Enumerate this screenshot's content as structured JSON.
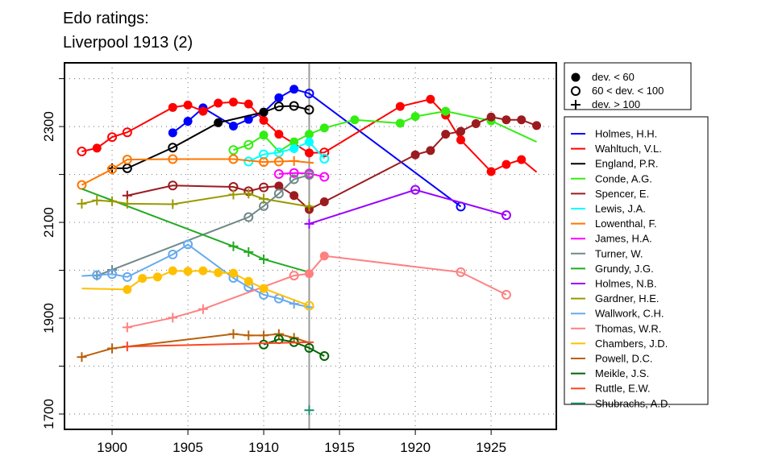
{
  "chart_data": {
    "type": "line",
    "title": [
      "Edo ratings:",
      "Liverpool 1913 (2)"
    ],
    "xlabel": "",
    "ylabel": "",
    "xlim": [
      1896.86,
      1929.3
    ],
    "ylim": [
      1668,
      2433
    ],
    "x_ticks": [
      1900,
      1905,
      1910,
      1915,
      1920,
      1925
    ],
    "y_ticks": [
      1700,
      1800,
      1900,
      2000,
      2100,
      2200,
      2300,
      2400
    ],
    "y_tick_labels": [
      1700,
      1900,
      2100,
      2300
    ],
    "grid": true,
    "reference_line_year": 1913,
    "marker_legend": [
      {
        "marker": "filled",
        "label": "dev. < 60"
      },
      {
        "marker": "open",
        "label": "60 < dev. < 100"
      },
      {
        "marker": "plus",
        "label": "dev. > 100"
      }
    ],
    "legend_placement": "right",
    "series": [
      {
        "name": "Holmes, H.H.",
        "color": "#0000ff",
        "points": [
          [
            1904,
            2287,
            "f"
          ],
          [
            1905,
            2311,
            "f"
          ],
          [
            1906,
            2339,
            "f"
          ],
          [
            1908,
            2301,
            "f"
          ],
          [
            1909,
            2315,
            "f"
          ],
          [
            1910,
            2330,
            "f"
          ],
          [
            1911,
            2360,
            "f"
          ],
          [
            1912,
            2378,
            "f"
          ],
          [
            1913,
            2369,
            "o"
          ],
          [
            1923,
            2133,
            "o"
          ]
        ]
      },
      {
        "name": "Wahltuch, V.L.",
        "color": "#ff0000",
        "points": [
          [
            1898,
            2248,
            "o"
          ],
          [
            1899,
            2255,
            "f"
          ],
          [
            1900,
            2278,
            "o"
          ],
          [
            1901,
            2288,
            "o"
          ],
          [
            1904,
            2340,
            "f"
          ],
          [
            1905,
            2345,
            "f"
          ],
          [
            1906,
            2332,
            "f"
          ],
          [
            1907,
            2349,
            "f"
          ],
          [
            1908,
            2351,
            "f"
          ],
          [
            1909,
            2347,
            "f"
          ],
          [
            1910,
            2313,
            "f"
          ],
          [
            1911,
            2284,
            "f"
          ],
          [
            1913,
            2245,
            "f"
          ],
          [
            1914,
            2246,
            "o"
          ],
          [
            1919,
            2342,
            "f"
          ],
          [
            1921,
            2357,
            "f"
          ],
          [
            1922,
            2324,
            "f"
          ],
          [
            1923,
            2272,
            "f"
          ],
          [
            1925,
            2206,
            "f"
          ],
          [
            1926,
            2221,
            "f"
          ],
          [
            1927,
            2231,
            "f"
          ],
          [
            1928,
            2205,
            "n"
          ]
        ]
      },
      {
        "name": "England, P.R.",
        "color": "#000000",
        "points": [
          [
            1900,
            2213,
            "p"
          ],
          [
            1901,
            2213,
            "o"
          ],
          [
            1904,
            2256,
            "o"
          ],
          [
            1907,
            2308,
            "f"
          ],
          [
            1910,
            2330,
            "f"
          ],
          [
            1911,
            2342,
            "o"
          ],
          [
            1912,
            2343,
            "o"
          ],
          [
            1913,
            2335,
            "o"
          ]
        ]
      },
      {
        "name": "Conde, A.G.",
        "color": "#33ee11",
        "points": [
          [
            1908,
            2251,
            "o"
          ],
          [
            1909,
            2262,
            "o"
          ],
          [
            1910,
            2282,
            "f"
          ],
          [
            1911,
            2248,
            "n"
          ],
          [
            1912,
            2268,
            "f"
          ],
          [
            1913,
            2284,
            "f"
          ],
          [
            1914,
            2297,
            "f"
          ],
          [
            1916,
            2314,
            "f"
          ],
          [
            1919,
            2307,
            "f"
          ],
          [
            1920,
            2321,
            "f"
          ],
          [
            1922,
            2332,
            "f"
          ],
          [
            1925,
            2312,
            "f"
          ],
          [
            1928,
            2268,
            "n"
          ]
        ]
      },
      {
        "name": "Spencer, E.",
        "color": "#9b1b1f",
        "points": [
          [
            1901,
            2156,
            "p"
          ],
          [
            1904,
            2177,
            "o"
          ],
          [
            1908,
            2174,
            "o"
          ],
          [
            1909,
            2165,
            "o"
          ],
          [
            1910,
            2173,
            "o"
          ],
          [
            1911,
            2176,
            "f"
          ],
          [
            1912,
            2156,
            "f"
          ],
          [
            1913,
            2127,
            "f"
          ],
          [
            1914,
            2143,
            "f"
          ],
          [
            1920,
            2241,
            "f"
          ],
          [
            1921,
            2250,
            "f"
          ],
          [
            1922,
            2284,
            "f"
          ],
          [
            1923,
            2290,
            "f"
          ],
          [
            1924,
            2306,
            "f"
          ],
          [
            1925,
            2320,
            "f"
          ],
          [
            1926,
            2314,
            "f"
          ],
          [
            1927,
            2314,
            "f"
          ],
          [
            1928,
            2302,
            "f"
          ]
        ]
      },
      {
        "name": "Lewis, J.A.",
        "color": "#00ffff",
        "points": [
          [
            1909,
            2227,
            "o"
          ],
          [
            1910,
            2242,
            "o"
          ],
          [
            1911,
            2246,
            "o"
          ],
          [
            1912,
            2254,
            "f"
          ],
          [
            1913,
            2268,
            "f"
          ],
          [
            1914,
            2233,
            "o"
          ]
        ]
      },
      {
        "name": "Lowenthal, F.",
        "color": "#ff7700",
        "points": [
          [
            1898,
            2178,
            "o"
          ],
          [
            1900,
            2211,
            "o"
          ],
          [
            1901,
            2231,
            "o"
          ],
          [
            1904,
            2232,
            "o"
          ],
          [
            1908,
            2232,
            "o"
          ],
          [
            1910,
            2226,
            "o"
          ],
          [
            1911,
            2227,
            "o"
          ],
          [
            1912,
            2228,
            "p"
          ],
          [
            1913.3,
            2224,
            "n"
          ]
        ]
      },
      {
        "name": "James, H.A.",
        "color": "#ff00ff",
        "points": [
          [
            1911,
            2201,
            "o"
          ],
          [
            1912,
            2203,
            "o"
          ],
          [
            1913,
            2202,
            "o"
          ],
          [
            1914,
            2195,
            "o"
          ]
        ]
      },
      {
        "name": "Turner, W.",
        "color": "#708888",
        "points": [
          [
            1899,
            1989,
            "p"
          ],
          [
            1900,
            2001,
            "p"
          ],
          [
            1909,
            2111,
            "o"
          ],
          [
            1910,
            2134,
            "o"
          ],
          [
            1911,
            2160,
            "o"
          ],
          [
            1912,
            2190,
            "o"
          ],
          [
            1913,
            2199,
            "o"
          ]
        ]
      },
      {
        "name": "Grundy, J.G.",
        "color": "#22aa22",
        "points": [
          [
            1898,
            2170,
            "n"
          ],
          [
            1908,
            2050,
            "p"
          ],
          [
            1909,
            2038,
            "p"
          ],
          [
            1910,
            2023,
            "p"
          ],
          [
            1913,
            1996,
            "n"
          ]
        ]
      },
      {
        "name": "Holmes, N.B.",
        "color": "#9900ff",
        "points": [
          [
            1913,
            2097,
            "p"
          ],
          [
            1920,
            2168,
            "o"
          ],
          [
            1926,
            2115,
            "o"
          ]
        ]
      },
      {
        "name": "Gardner, H.E.",
        "color": "#999900",
        "points": [
          [
            1898,
            2139,
            "p"
          ],
          [
            1899,
            2146,
            "p"
          ],
          [
            1900,
            2144,
            "p"
          ],
          [
            1901,
            2139,
            "p"
          ],
          [
            1904,
            2138,
            "p"
          ],
          [
            1908,
            2158,
            "p"
          ],
          [
            1909,
            2160,
            "p"
          ],
          [
            1910,
            2149,
            "p"
          ],
          [
            1913,
            2133,
            "p"
          ]
        ]
      },
      {
        "name": "Wallwork, C.H.",
        "color": "#66aaee",
        "points": [
          [
            1898,
            1988,
            "n"
          ],
          [
            1899,
            1990,
            "o"
          ],
          [
            1900,
            1992,
            "o"
          ],
          [
            1901,
            1986,
            "o"
          ],
          [
            1904,
            2033,
            "o"
          ],
          [
            1905,
            2054,
            "o"
          ],
          [
            1908,
            1984,
            "o"
          ],
          [
            1909,
            1965,
            "o"
          ],
          [
            1910,
            1949,
            "o"
          ],
          [
            1911,
            1941,
            "o"
          ],
          [
            1912,
            1930,
            "p"
          ],
          [
            1913,
            1923,
            "p"
          ]
        ]
      },
      {
        "name": "Thomas, W.R.",
        "color": "#ff8080",
        "points": [
          [
            1901,
            1881,
            "p"
          ],
          [
            1904,
            1901,
            "p"
          ],
          [
            1906,
            1919,
            "p"
          ],
          [
            1912,
            1989,
            "o"
          ],
          [
            1913,
            1993,
            "f"
          ],
          [
            1914,
            2030,
            "f"
          ],
          [
            1923,
            1996,
            "o"
          ],
          [
            1926,
            1949,
            "o"
          ]
        ]
      },
      {
        "name": "Chambers, J.D.",
        "color": "#ffc000",
        "points": [
          [
            1898,
            1962,
            "n"
          ],
          [
            1901,
            1960,
            "f"
          ],
          [
            1902,
            1983,
            "f"
          ],
          [
            1903,
            1986,
            "f"
          ],
          [
            1904,
            1999,
            "f"
          ],
          [
            1905,
            1998,
            "f"
          ],
          [
            1906,
            1999,
            "f"
          ],
          [
            1907,
            1995,
            "f"
          ],
          [
            1908,
            1994,
            "f"
          ],
          [
            1909,
            1977,
            "f"
          ],
          [
            1910,
            1962,
            "f"
          ],
          [
            1913,
            1926,
            "o"
          ]
        ]
      },
      {
        "name": "Powell, D.C.",
        "color": "#b8600a",
        "points": [
          [
            1898,
            1819,
            "p"
          ],
          [
            1900,
            1837,
            "p"
          ],
          [
            1908,
            1867,
            "p"
          ],
          [
            1909,
            1864,
            "p"
          ],
          [
            1910,
            1864,
            "p"
          ],
          [
            1911,
            1867,
            "p"
          ],
          [
            1912,
            1859,
            "p"
          ],
          [
            1913,
            1849,
            "n"
          ]
        ]
      },
      {
        "name": "Meikle, J.S.",
        "color": "#006400",
        "points": [
          [
            1910,
            1845,
            "o"
          ],
          [
            1911,
            1856,
            "o"
          ],
          [
            1912,
            1850,
            "o"
          ],
          [
            1913,
            1838,
            "o"
          ],
          [
            1914,
            1821,
            "o"
          ]
        ]
      },
      {
        "name": "Ruttle, E.W.",
        "color": "#ff4422",
        "points": [
          [
            1901,
            1841,
            "p"
          ],
          [
            1913.3,
            1850,
            "n"
          ]
        ]
      },
      {
        "name": "Shubrachs, A.D.",
        "color": "#1a8f6f",
        "points": [
          [
            1913,
            1708,
            "p"
          ]
        ]
      }
    ]
  }
}
